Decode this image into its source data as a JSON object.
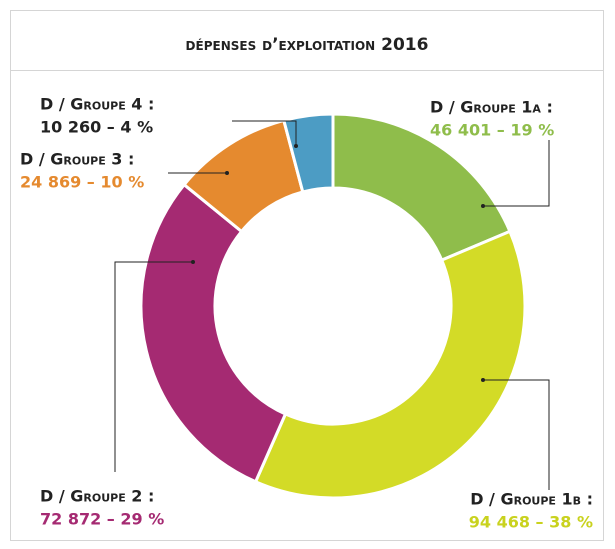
{
  "chart_data": {
    "type": "donut",
    "title": "dépenses d’exploitation 2016",
    "categories": [
      "D / Groupe 1a :",
      "D / Groupe 1b :",
      "D / Groupe 2 :",
      "D / Groupe 3 :",
      "D / Groupe 4 :"
    ],
    "values": [
      46401,
      94468,
      72872,
      24869,
      10260
    ],
    "value_labels": [
      "46 401 – 19 %",
      "94 468 – 38 %",
      "72 872 – 29 %",
      "24 869 – 10 %",
      "10 260 – 4 %"
    ],
    "colors": [
      "#8fbd4b",
      "#d3db27",
      "#a52a72",
      "#e58a2f",
      "#4c9cc4"
    ],
    "value_label_colors": [
      "#8fbd4b",
      "#c9d21e",
      "#a52a72",
      "#e58a2f",
      "#222222"
    ]
  }
}
